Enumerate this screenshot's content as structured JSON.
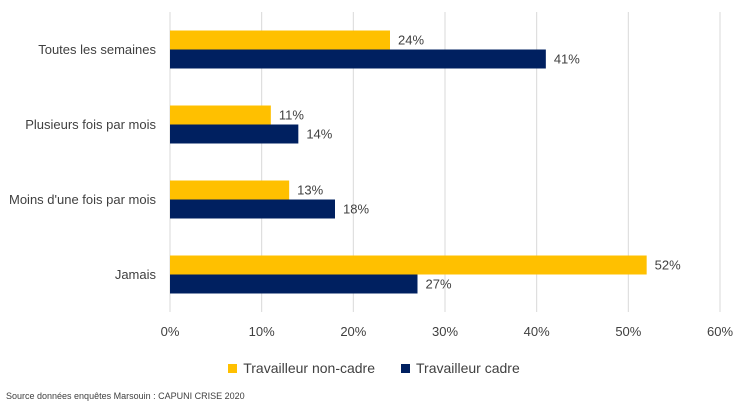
{
  "chart_data": {
    "type": "bar",
    "orientation": "horizontal",
    "categories": [
      "Toutes les semaines",
      "Plusieurs fois par mois",
      "Moins d'une fois par mois",
      "Jamais"
    ],
    "series": [
      {
        "name": "Travailleur non-cadre",
        "values": [
          24,
          11,
          13,
          52
        ],
        "labels": [
          "24%",
          "11%",
          "13%",
          "52%"
        ],
        "color": "#FFC000"
      },
      {
        "name": "Travailleur cadre",
        "values": [
          41,
          14,
          18,
          27
        ],
        "labels": [
          "41%",
          "14%",
          "18%",
          "27%"
        ],
        "color": "#002060"
      }
    ],
    "xlim": [
      0,
      60
    ],
    "xticks": [
      0,
      10,
      20,
      30,
      40,
      50,
      60
    ],
    "xtick_labels": [
      "0%",
      "10%",
      "20%",
      "30%",
      "40%",
      "50%",
      "60%"
    ],
    "grid": true,
    "legend_position": "bottom"
  },
  "source": "Source données enquêtes Marsouin : CAPUNI CRISE 2020"
}
